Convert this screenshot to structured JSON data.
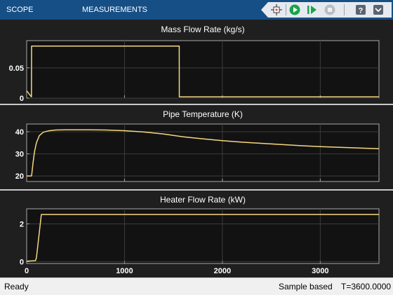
{
  "toolstrip": {
    "tabs": [
      {
        "label": "SCOPE"
      },
      {
        "label": "MEASUREMENTS"
      }
    ],
    "buttons": [
      {
        "name": "highlight-simulink-block-button",
        "icon": "highlight-block-icon"
      },
      {
        "name": "run-button",
        "icon": "play-icon"
      },
      {
        "name": "step-forward-button",
        "icon": "step-forward-icon"
      },
      {
        "name": "stop-button",
        "icon": "stop-icon"
      },
      {
        "name": "help-button",
        "icon": "help-icon"
      },
      {
        "name": "expand-toolstrip-button",
        "icon": "chevron-down-icon"
      }
    ],
    "colors": {
      "background": "#164f86",
      "run": "#1aa34a",
      "stop": "#9aa0a6"
    }
  },
  "chart_data": [
    {
      "type": "line",
      "title": "Mass Flow Rate (kg/s)",
      "xlim": [
        0,
        3600
      ],
      "ylim": [
        0,
        0.095
      ],
      "yticks": [
        0,
        0.05
      ],
      "ytick_labels": [
        "0",
        "0.05"
      ],
      "xticks": [
        0,
        1000,
        2000,
        3000
      ],
      "grid": true,
      "series": [
        {
          "color": "#f5d77f",
          "x": [
            0,
            49,
            50,
            1559,
            1560,
            3600
          ],
          "y": [
            0.012,
            0.002,
            0.086,
            0.086,
            0.002,
            0.002
          ]
        }
      ]
    },
    {
      "type": "line",
      "title": "Pipe Temperature (K)",
      "xlim": [
        0,
        3600
      ],
      "ylim": [
        17.5,
        43.5
      ],
      "yticks": [
        20,
        30,
        40
      ],
      "ytick_labels": [
        "20",
        "30",
        "40"
      ],
      "xticks": [
        0,
        1000,
        2000,
        3000
      ],
      "grid": true,
      "series": [
        {
          "color": "#f5d77f",
          "x": [
            0,
            50,
            65,
            80,
            100,
            130,
            170,
            220,
            300,
            400,
            600,
            800,
            1000,
            1200,
            1400,
            1600,
            1800,
            2000,
            2200,
            2500,
            2800,
            3000,
            3300,
            3600
          ],
          "y": [
            20,
            20,
            26,
            31,
            35,
            38.3,
            39.8,
            40.4,
            40.8,
            40.9,
            40.9,
            40.8,
            40.5,
            39.9,
            39,
            37.7,
            36.8,
            36,
            35.3,
            34.5,
            33.7,
            33.3,
            32.8,
            32.3
          ]
        }
      ]
    },
    {
      "type": "line",
      "title": "Heater Flow Rate (kW)",
      "xlim": [
        0,
        3600
      ],
      "ylim": [
        -0.1,
        2.8
      ],
      "yticks": [
        0,
        2
      ],
      "ytick_labels": [
        "0",
        "2"
      ],
      "xticks": [
        0,
        1000,
        2000,
        3000
      ],
      "xtick_labels": [
        "0",
        "1000",
        "2000",
        "3000"
      ],
      "grid": true,
      "series": [
        {
          "color": "#f5d77f",
          "x": [
            0,
            90,
            100,
            150,
            3600
          ],
          "y": [
            0.02,
            0.05,
            0.2,
            2.5,
            2.5
          ]
        }
      ]
    }
  ],
  "status": {
    "left": "Ready",
    "mode": "Sample based",
    "time": "T=3600.0000"
  }
}
